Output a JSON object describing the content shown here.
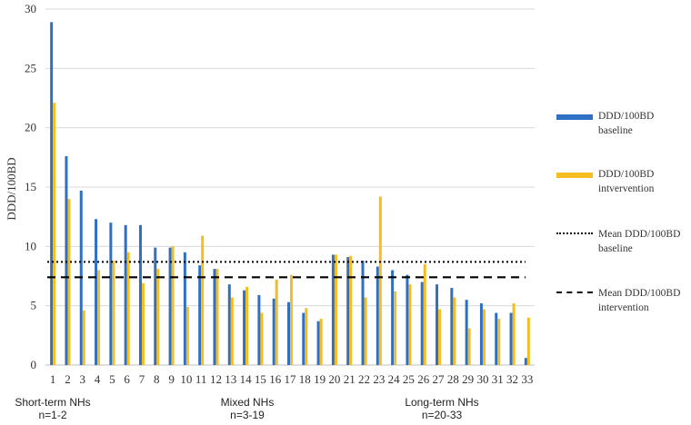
{
  "chart_data": {
    "type": "bar",
    "title": "",
    "ylabel": "DDD/100BD",
    "xlabel": "",
    "ylim": [
      0,
      30
    ],
    "yticks": [
      0,
      5,
      10,
      15,
      20,
      25,
      30
    ],
    "grid": true,
    "legend_position": "right",
    "categories": [
      "1",
      "2",
      "3",
      "4",
      "5",
      "6",
      "7",
      "8",
      "9",
      "10",
      "11",
      "12",
      "13",
      "14",
      "15",
      "16",
      "17",
      "18",
      "19",
      "20",
      "21",
      "22",
      "23",
      "24",
      "25",
      "26",
      "27",
      "28",
      "29",
      "30",
      "31",
      "32",
      "33"
    ],
    "series": [
      {
        "name": "DDD/100BD baseline",
        "color": "#2f6fc4",
        "values": [
          28.9,
          17.6,
          14.7,
          12.3,
          12.0,
          11.8,
          11.8,
          9.9,
          9.9,
          9.5,
          8.4,
          8.1,
          6.8,
          6.3,
          5.9,
          5.6,
          5.3,
          4.4,
          3.7,
          9.3,
          9.1,
          8.8,
          8.3,
          8.0,
          7.6,
          7.0,
          6.8,
          6.5,
          5.5,
          5.2,
          4.4,
          4.4,
          0.6
        ]
      },
      {
        "name": "DDD/100BD intvervention",
        "color": "#f5bd1f",
        "values": [
          22.1,
          14.0,
          4.6,
          8.0,
          8.8,
          9.5,
          6.9,
          8.1,
          10.0,
          4.9,
          10.9,
          8.1,
          5.7,
          6.6,
          4.4,
          7.2,
          7.6,
          4.8,
          3.9,
          9.3,
          9.2,
          5.7,
          14.2,
          6.2,
          6.8,
          8.5,
          4.7,
          5.7,
          3.1,
          4.7,
          3.9,
          5.2,
          4.0
        ]
      }
    ],
    "reference_lines": [
      {
        "name": "Mean DDD/100BD baseline",
        "value": 8.7,
        "style": "dotted",
        "color": "#000000"
      },
      {
        "name": "Mean DDD/100BD intervention",
        "value": 7.4,
        "style": "dashed",
        "color": "#000000"
      }
    ],
    "groups": [
      {
        "label": "Short-term NHs",
        "sublabel": "n=1-2"
      },
      {
        "label": "Mixed NHs",
        "sublabel": "n=3-19"
      },
      {
        "label": "Long-term NHs",
        "sublabel": "n=20-33"
      }
    ]
  },
  "legend": [
    {
      "line1": "DDD/100BD",
      "line2": "baseline",
      "swatch": "bar",
      "color": "#2f6fc4"
    },
    {
      "line1": "DDD/100BD",
      "line2": "intvervention",
      "swatch": "bar",
      "color": "#f5bd1f"
    },
    {
      "line1": "Mean DDD/100BD",
      "line2": "baseline",
      "swatch": "dotted",
      "color": "#000000"
    },
    {
      "line1": "Mean DDD/100BD",
      "line2": "intervention",
      "swatch": "dashed",
      "color": "#000000"
    }
  ]
}
